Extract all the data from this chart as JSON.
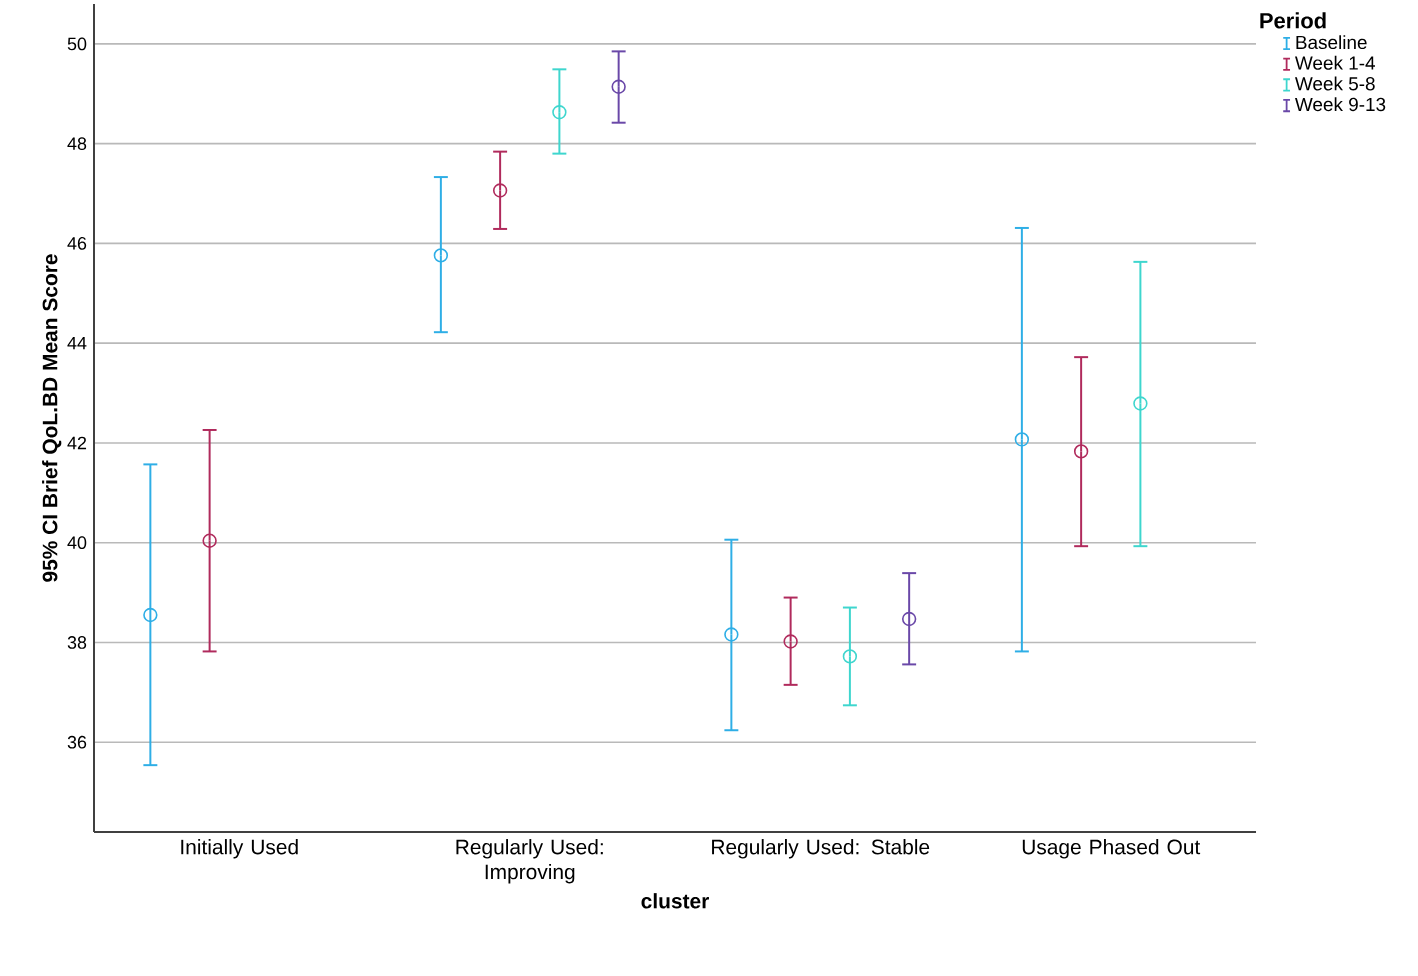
{
  "chart_data": {
    "type": "scatter",
    "xlabel": "cluster",
    "ylabel": "95% CI Brief QoL.BD Mean Score",
    "legend_title": "Period",
    "categories": [
      "Initially Used",
      "Regularly Used: Improving",
      "Regularly Used: Stable",
      "Usage Phased Out"
    ],
    "series": [
      {
        "name": "Baseline",
        "color": "#2EAEE6",
        "values": [
          38.55,
          45.76,
          38.16,
          42.07
        ],
        "errors": [
          [
            35.54,
            41.57
          ],
          [
            44.22,
            47.33
          ],
          [
            36.24,
            40.06
          ],
          [
            37.82,
            46.31
          ]
        ]
      },
      {
        "name": "Week 1-4",
        "color": "#B02A5C",
        "values": [
          40.04,
          47.06,
          38.02,
          41.83
        ],
        "errors": [
          [
            37.82,
            42.26
          ],
          [
            46.29,
            47.84
          ],
          [
            37.15,
            38.9
          ],
          [
            39.93,
            43.72
          ]
        ]
      },
      {
        "name": "Week 5-8",
        "color": "#3ED6CE",
        "values": [
          null,
          48.63,
          37.72,
          42.79
        ],
        "errors": [
          null,
          [
            47.8,
            49.49
          ],
          [
            36.74,
            38.7
          ],
          [
            39.93,
            45.63
          ]
        ]
      },
      {
        "name": "Week 9-13",
        "color": "#6A48A8",
        "values": [
          null,
          49.14,
          38.47,
          null
        ],
        "errors": [
          null,
          [
            48.42,
            49.85
          ],
          [
            37.56,
            39.39
          ],
          null
        ]
      }
    ],
    "ylim": [
      34.2,
      50.8
    ],
    "yticks": [
      36,
      38,
      40,
      42,
      44,
      46,
      48,
      50
    ],
    "grid": "y",
    "legend": "top right",
    "marker": "circle"
  }
}
